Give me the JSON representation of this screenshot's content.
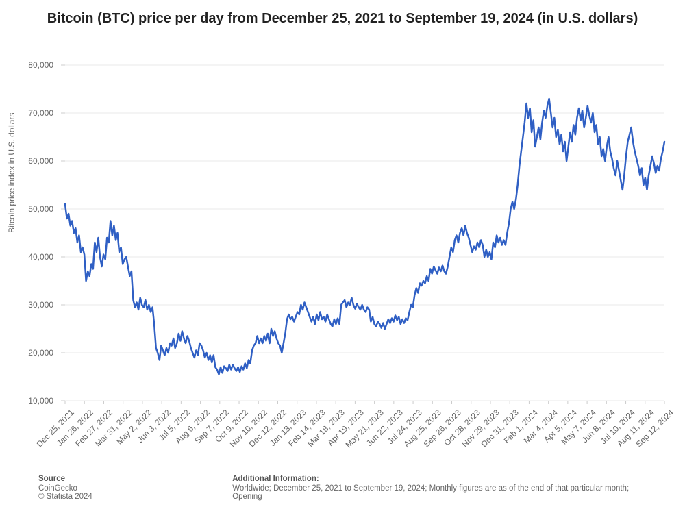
{
  "title": "Bitcoin (BTC) price per day from December 25, 2021 to September 19, 2024 (in U.S. dollars)",
  "chart": {
    "type": "line",
    "ylabel": "Bitcoin price index in U.S. dollars",
    "ylim": [
      10000,
      80000
    ],
    "yticks": [
      10000,
      20000,
      30000,
      40000,
      50000,
      60000,
      70000,
      80000
    ],
    "ytick_labels": [
      "10,000",
      "20,000",
      "30,000",
      "40,000",
      "50,000",
      "60,000",
      "70,000",
      "80,000"
    ],
    "xtick_labels": [
      "Dec 25, 2021",
      "Jan 26, 2022",
      "Feb 27, 2022",
      "Mar 31, 2022",
      "May 2, 2022",
      "Jun 3, 2022",
      "Jul 5, 2022",
      "Aug 6, 2022",
      "Sep 7, 2022",
      "Oct 9, 2022",
      "Nov 10, 2022",
      "Dec 12, 2022",
      "Jan 13, 2023",
      "Feb 14, 2023",
      "Mar 18, 2023",
      "Apr 19, 2023",
      "May 21, 2023",
      "Jun 22, 2023",
      "Jul 24, 2023",
      "Aug 25, 2023",
      "Sep 26, 2023",
      "Oct 28, 2023",
      "Nov 29, 2023",
      "Dec 31, 2023",
      "Feb 1, 2024",
      "Mar 4, 2024",
      "Apr 5, 2024",
      "May 7, 2024",
      "Jun 8, 2024",
      "Jul 10, 2024",
      "Aug 11, 2024",
      "Sep 12, 2024"
    ],
    "line_color": "#2f5fc4",
    "line_width": 2.5,
    "grid_color": "#e8e8e8",
    "background_color": "#ffffff",
    "tick_font_size": 12,
    "tick_color": "#666666",
    "label_font_size": 12,
    "title_font_size": 20,
    "values": [
      51000,
      48000,
      49000,
      46500,
      47500,
      45000,
      46000,
      43000,
      44500,
      41000,
      42000,
      40500,
      35000,
      37000,
      36000,
      38500,
      37500,
      43000,
      41000,
      44000,
      40000,
      38000,
      40500,
      39500,
      44000,
      43000,
      47500,
      44500,
      46500,
      43500,
      45000,
      41000,
      42000,
      38500,
      39500,
      40000,
      38000,
      36000,
      37000,
      31000,
      29500,
      30500,
      29000,
      31500,
      30000,
      29500,
      31000,
      29000,
      30000,
      28500,
      29500,
      26000,
      21000,
      20000,
      18500,
      21500,
      20500,
      19500,
      21000,
      20000,
      22000,
      21500,
      23000,
      21000,
      22000,
      24000,
      22500,
      24500,
      23000,
      22000,
      23500,
      22500,
      21000,
      20000,
      19000,
      20500,
      19500,
      22000,
      21500,
      20500,
      19000,
      20000,
      18500,
      19500,
      18000,
      19500,
      17000,
      16500,
      15500,
      17000,
      15800,
      17200,
      16800,
      16200,
      17500,
      16500,
      17500,
      16800,
      16200,
      17000,
      16000,
      17200,
      16500,
      17800,
      16800,
      18500,
      17800,
      20500,
      21500,
      22000,
      23500,
      22000,
      23000,
      22000,
      23500,
      22500,
      24000,
      22000,
      25000,
      23500,
      24500,
      23000,
      22000,
      21500,
      20000,
      22000,
      24000,
      27000,
      28000,
      27000,
      27500,
      26500,
      27500,
      28500,
      28000,
      30000,
      29000,
      30500,
      29500,
      28500,
      27500,
      26500,
      27500,
      26000,
      28000,
      26800,
      28500,
      27000,
      27500,
      26500,
      28000,
      27000,
      26000,
      25500,
      27000,
      26000,
      27200,
      26000,
      30000,
      30500,
      31000,
      29500,
      30500,
      30000,
      31500,
      30000,
      29200,
      30200,
      29500,
      29000,
      30000,
      29000,
      28500,
      29500,
      29000,
      26500,
      27500,
      26000,
      25500,
      26500,
      26000,
      25200,
      26200,
      25000,
      26000,
      27000,
      26200,
      27200,
      26500,
      27800,
      26800,
      27500,
      26000,
      27000,
      26200,
      27200,
      26800,
      28500,
      30000,
      29500,
      32000,
      33500,
      32500,
      34500,
      34000,
      35000,
      34500,
      36000,
      35000,
      37500,
      36500,
      38000,
      37200,
      36500,
      37800,
      37000,
      38200,
      37000,
      36500,
      38000,
      40000,
      42000,
      41000,
      43500,
      44500,
      43000,
      45000,
      46000,
      44500,
      46500,
      45000,
      44000,
      42500,
      41000,
      42200,
      41500,
      43000,
      42000,
      43500,
      42500,
      40000,
      41500,
      40000,
      41000,
      39500,
      43000,
      42000,
      44500,
      43000,
      44000,
      42500,
      43500,
      42500,
      45000,
      47000,
      50000,
      51500,
      50000,
      52000,
      55000,
      59000,
      62000,
      65000,
      68000,
      72000,
      69000,
      71000,
      66000,
      68500,
      63000,
      65000,
      67000,
      64500,
      68000,
      70500,
      69000,
      71500,
      73000,
      70000,
      67000,
      69000,
      65000,
      66500,
      63500,
      65500,
      62000,
      64000,
      60000,
      63000,
      66000,
      64000,
      67500,
      65500,
      69000,
      71000,
      68500,
      70500,
      67000,
      69000,
      71500,
      69500,
      68000,
      70000,
      66000,
      67500,
      63500,
      65000,
      61000,
      62500,
      60000,
      63000,
      65000,
      62000,
      60500,
      58500,
      57000,
      60000,
      58000,
      56000,
      54000,
      57000,
      61000,
      64000,
      65500,
      67000,
      64000,
      62000,
      60500,
      59000,
      57000,
      58500,
      55000,
      56500,
      54000,
      57000,
      59000,
      61000,
      59500,
      57500,
      59000,
      58000,
      60500,
      62000,
      64000
    ]
  },
  "footer": {
    "source_heading": "Source",
    "source_line1": "CoinGecko",
    "source_line2": "© Statista 2024",
    "info_heading": "Additional Information:",
    "info_text": "Worldwide; December 25, 2021 to September 19, 2024; Monthly figures are as of the end of that particular month; Opening"
  }
}
